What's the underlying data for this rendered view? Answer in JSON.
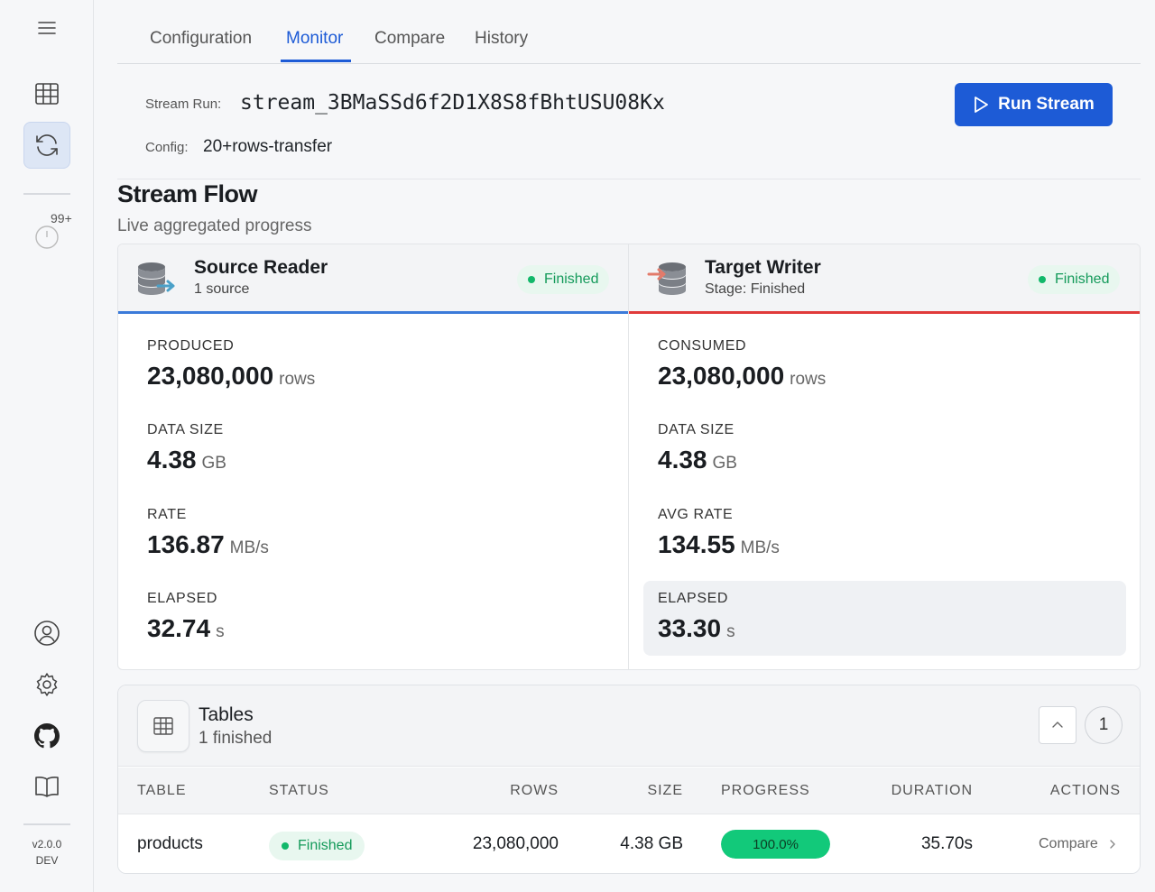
{
  "sidebar": {
    "badge": "99+",
    "version": "v2.0.0",
    "env": "DEV"
  },
  "tabs": [
    {
      "label": "Configuration"
    },
    {
      "label": "Monitor"
    },
    {
      "label": "Compare"
    },
    {
      "label": "History"
    }
  ],
  "run": {
    "stream_label": "Stream Run:",
    "stream_id": "stream_3BMaSSd6f2D1X8S8fBhtUSU08Kx",
    "config_label": "Config:",
    "config_value": "20+rows-transfer",
    "button_label": "Run Stream"
  },
  "flow": {
    "title": "Stream Flow",
    "subtitle": "Live aggregated progress",
    "source": {
      "title": "Source Reader",
      "subtitle": "1 source",
      "status": "Finished",
      "metrics": [
        {
          "label": "PRODUCED",
          "value": "23,080,000",
          "unit": "rows"
        },
        {
          "label": "DATA SIZE",
          "value": "4.38",
          "unit": "GB"
        },
        {
          "label": "RATE",
          "value": "136.87",
          "unit": "MB/s"
        },
        {
          "label": "ELAPSED",
          "value": "32.74",
          "unit": "s"
        }
      ]
    },
    "target": {
      "title": "Target Writer",
      "subtitle": "Stage: Finished",
      "status": "Finished",
      "metrics": [
        {
          "label": "CONSUMED",
          "value": "23,080,000",
          "unit": "rows"
        },
        {
          "label": "DATA SIZE",
          "value": "4.38",
          "unit": "GB"
        },
        {
          "label": "AVG RATE",
          "value": "134.55",
          "unit": "MB/s"
        },
        {
          "label": "ELAPSED",
          "value": "33.30",
          "unit": "s"
        }
      ]
    }
  },
  "tables": {
    "title": "Tables",
    "subtitle": "1 finished",
    "count": "1",
    "columns": [
      "TABLE",
      "STATUS",
      "ROWS",
      "SIZE",
      "PROGRESS",
      "DURATION",
      "ACTIONS"
    ],
    "rows": [
      {
        "table": "products",
        "status": "Finished",
        "rows": "23,080,000",
        "size": "4.38 GB",
        "progress_text": "100.0%",
        "progress": 1.0,
        "duration": "35.70s",
        "action": "Compare"
      }
    ]
  },
  "colors": {
    "accent": "#1d5bd6",
    "success": "#11b86a",
    "source_line": "#3b7ad9",
    "target_line": "#e03a3a"
  }
}
